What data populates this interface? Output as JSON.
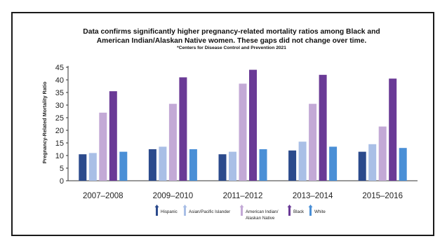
{
  "slide": {
    "title_line1": "Data confirms significantly higher pregnancy-related mortality ratios among Black and",
    "title_line2": "American Indian/Alaskan Native women. These gaps did not change over time.",
    "source": "*Centers for Disease Control  and Prevention 2021"
  },
  "chart_data": {
    "type": "bar",
    "title": "",
    "xlabel": "",
    "ylabel": "Pregnancy-Related Mortality Ratio",
    "ylim": [
      0,
      45
    ],
    "yticks": [
      0,
      5,
      10,
      15,
      20,
      25,
      30,
      35,
      40,
      45
    ],
    "grid": false,
    "legend_position": "bottom",
    "categories": [
      "2007–2008",
      "2009–2010",
      "2011–2012",
      "2013–2014",
      "2015–2016"
    ],
    "series": [
      {
        "name": "Hispanic",
        "color": "#2b4a8c",
        "values": [
          10.5,
          12.5,
          10.5,
          12,
          11.5
        ]
      },
      {
        "name": "Asian/Pacific Islander",
        "color": "#a9bfe6",
        "values": [
          11,
          13.5,
          11.5,
          15.5,
          14.5
        ]
      },
      {
        "name": "American Indian/ Alaskan Native",
        "color": "#c3a9d6",
        "values": [
          27,
          30.5,
          38.5,
          30.5,
          21.5
        ]
      },
      {
        "name": "Black",
        "color": "#6a3a96",
        "values": [
          35.5,
          41,
          44,
          42,
          40.5
        ]
      },
      {
        "name": "White",
        "color": "#4a8fd6",
        "values": [
          11.5,
          12.5,
          12.5,
          13.5,
          13
        ]
      }
    ]
  }
}
